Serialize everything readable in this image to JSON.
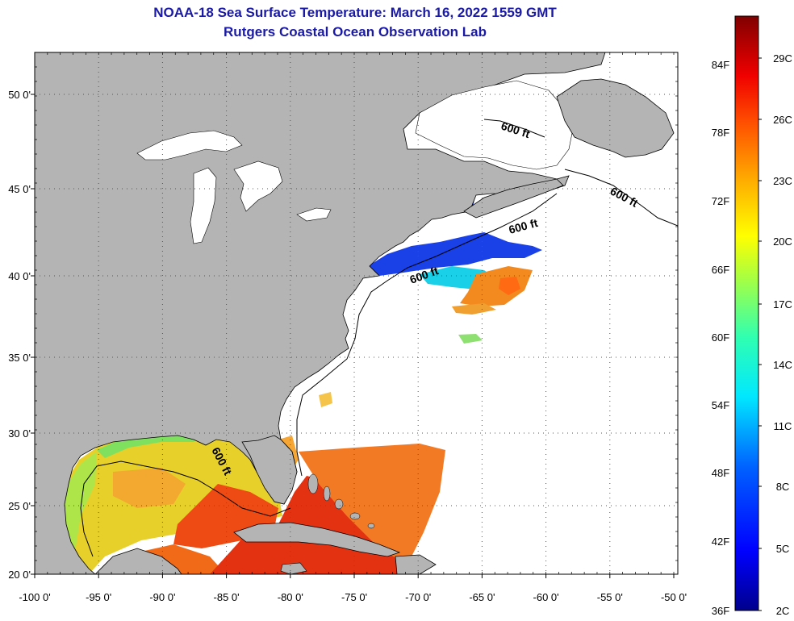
{
  "titles": {
    "line1": "NOAA-18 Sea Surface Temperature:  March 16, 2022 1559 GMT",
    "line2": "Rutgers Coastal Ocean Observation Lab"
  },
  "map": {
    "lon_ticks": [
      "-100 0'",
      "-95 0'",
      "-90 0'",
      "-85 0'",
      "-80 0'",
      "-75 0'",
      "-70 0'",
      "-65 0'",
      "-60 0'",
      "-55 0'",
      "-50 0'"
    ],
    "lat_ticks": [
      "20 0'",
      "25 0'",
      "30 0'",
      "35 0'",
      "40 0'",
      "45 0'",
      "50 0'"
    ],
    "contour_label": "600 ft",
    "colors": {
      "land": "#b4b4b4",
      "no_data": "#ffffff",
      "grid": "#555555"
    }
  },
  "colorbar": {
    "f_labels": [
      "84F",
      "78F",
      "72F",
      "66F",
      "60F",
      "54F",
      "48F",
      "42F",
      "36F"
    ],
    "c_labels": [
      "29C",
      "26C",
      "23C",
      "20C",
      "17C",
      "14C",
      "11C",
      "8C",
      "5C",
      "2C"
    ]
  }
}
